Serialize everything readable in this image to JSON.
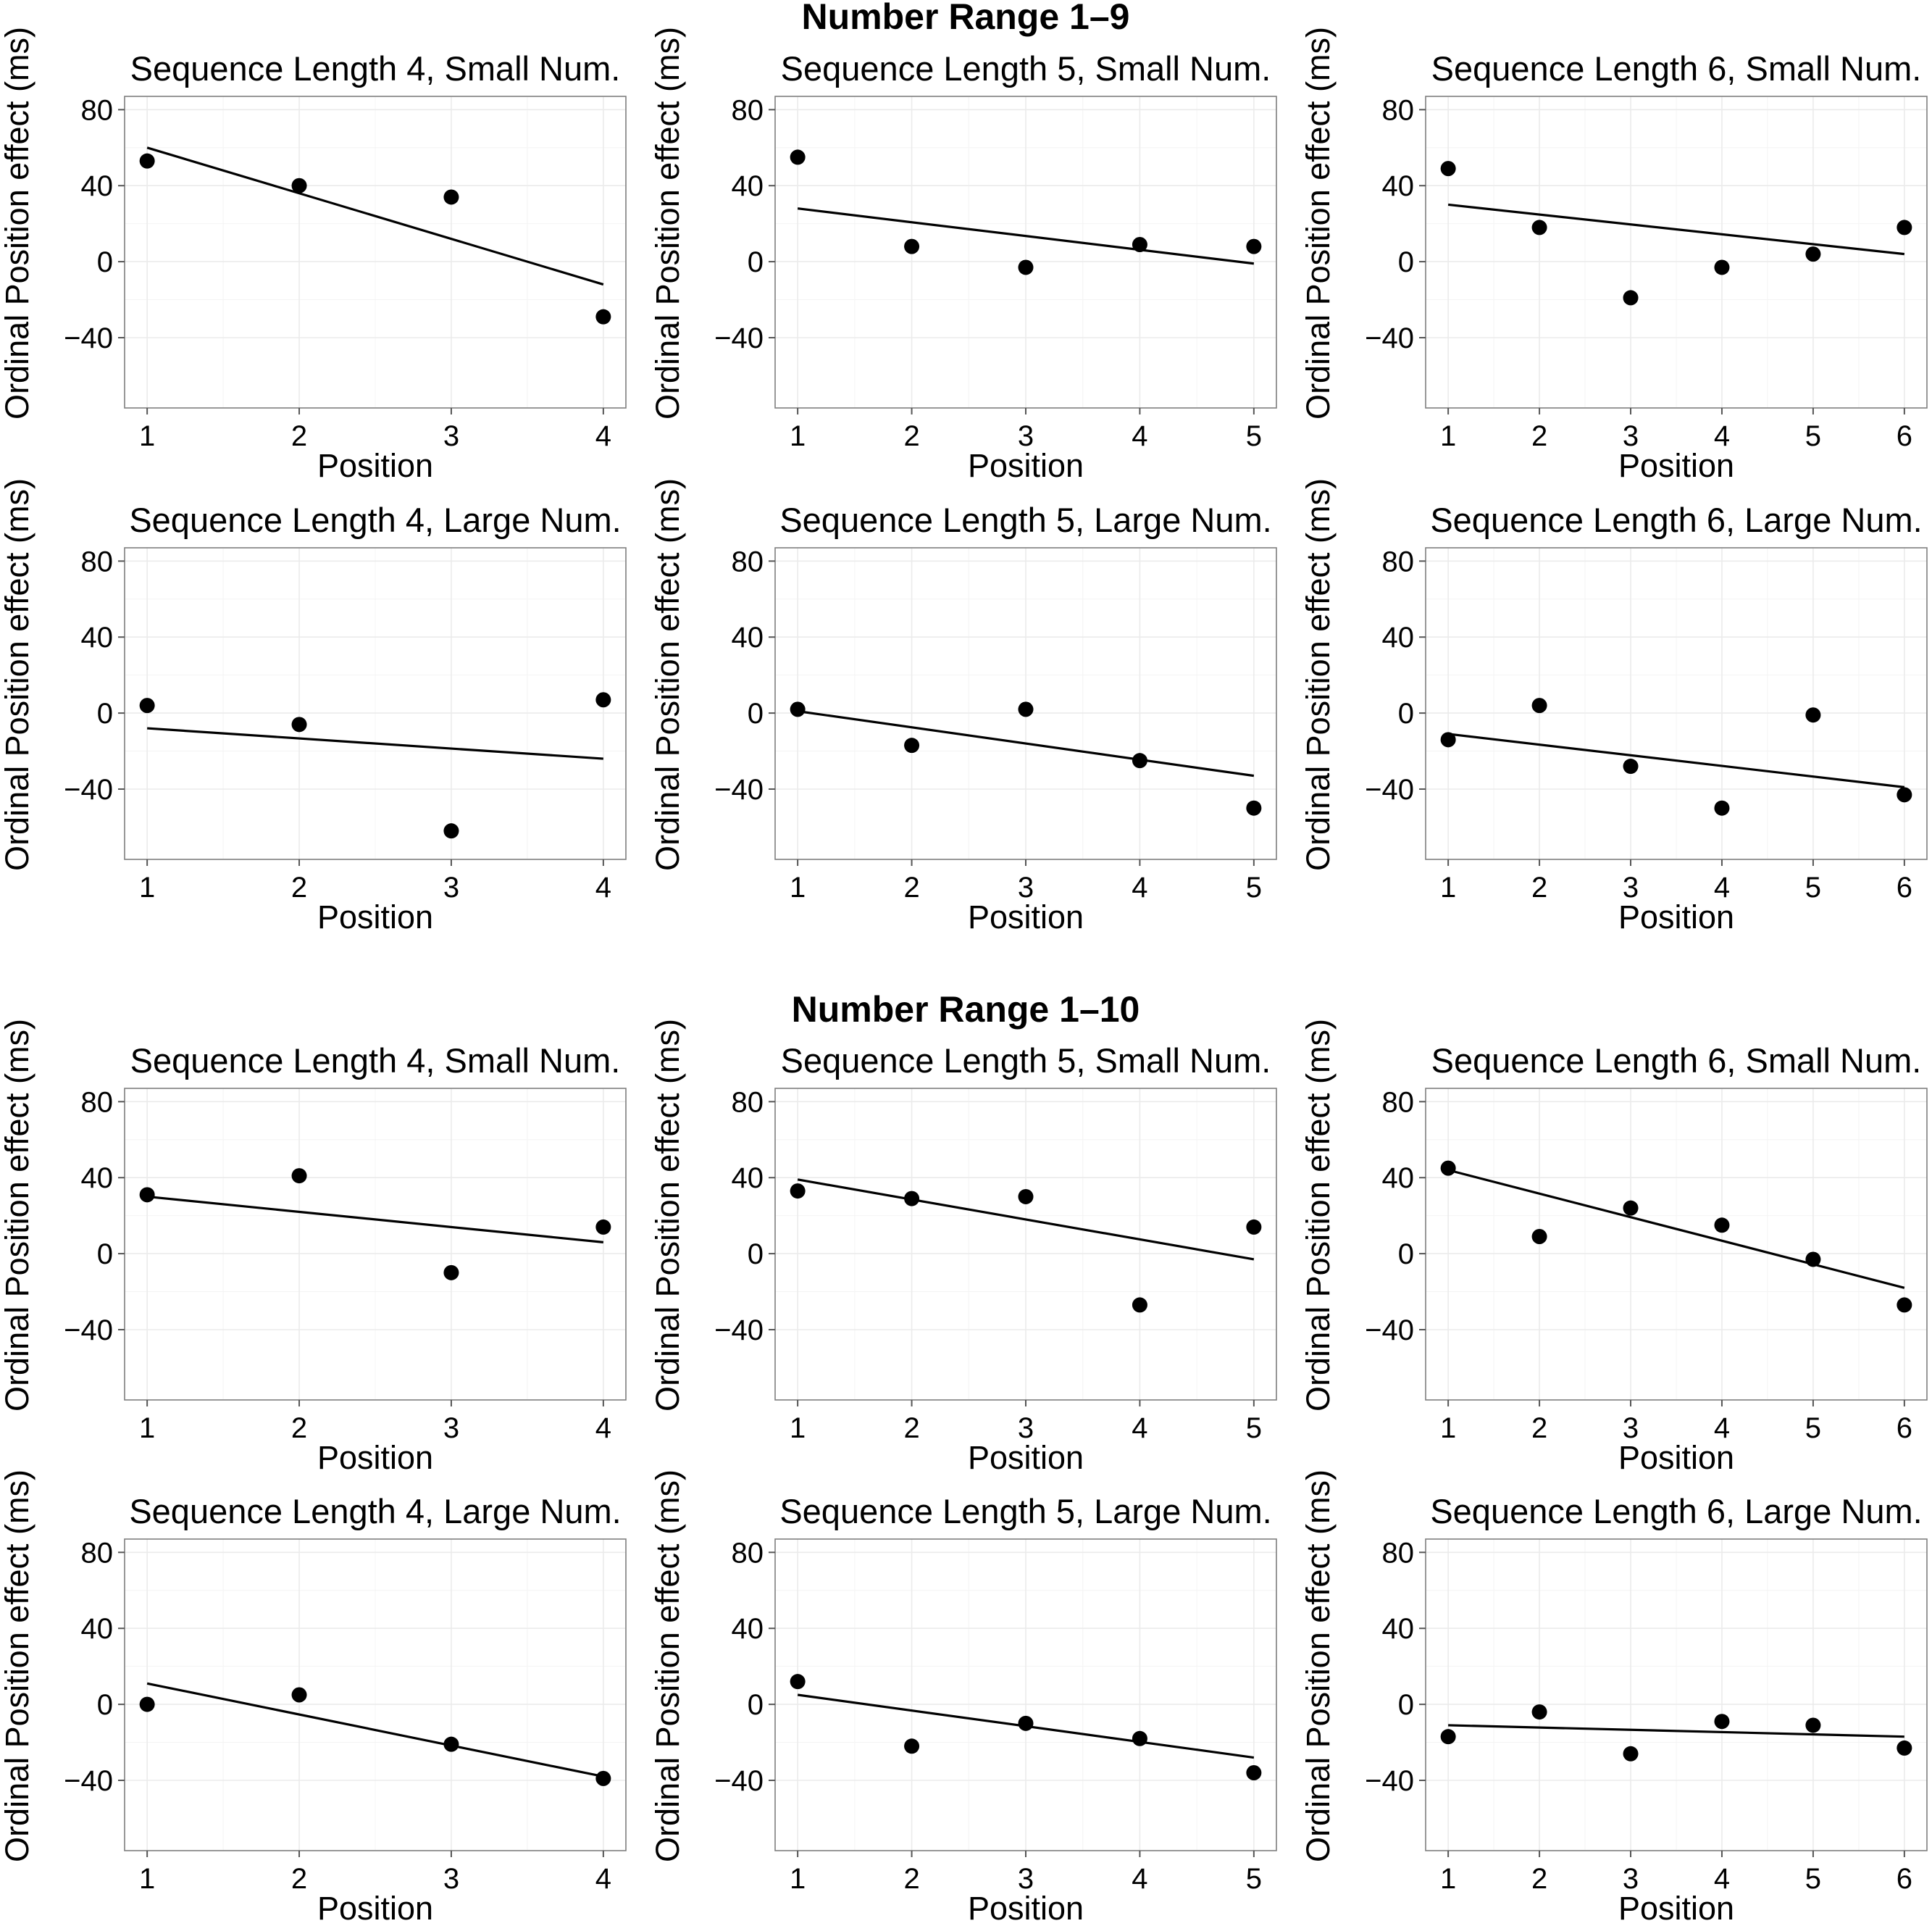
{
  "sections": [
    {
      "title": "Number Range 1–9"
    },
    {
      "title": "Number Range 1–10"
    }
  ],
  "colors": {
    "points": "#000000",
    "line": "#000000",
    "panel_border": "#7f7f7f",
    "grid": "#ebebeb"
  },
  "chart_data": [
    {
      "section": "Number Range 1–9",
      "type": "scatter",
      "title": "Sequence Length 4, Small Num.",
      "xlabel": "Position",
      "ylabel": "Ordinal Position effect (ms)",
      "x": [
        1,
        2,
        3,
        4
      ],
      "y": [
        53,
        40,
        34,
        -29
      ],
      "fit": [
        60,
        -12
      ],
      "ylim": [
        -77,
        87
      ],
      "yticks": [
        -40,
        0,
        40,
        80
      ],
      "grid": true
    },
    {
      "section": "Number Range 1–9",
      "type": "scatter",
      "title": "Sequence Length 5, Small Num.",
      "xlabel": "Position",
      "ylabel": "Ordinal Position effect (ms)",
      "x": [
        1,
        2,
        3,
        4,
        5
      ],
      "y": [
        55,
        8,
        -3,
        9,
        8
      ],
      "fit": [
        28,
        -1
      ],
      "ylim": [
        -77,
        87
      ],
      "yticks": [
        -40,
        0,
        40,
        80
      ],
      "grid": true
    },
    {
      "section": "Number Range 1–9",
      "type": "scatter",
      "title": "Sequence Length 6, Small Num.",
      "xlabel": "Position",
      "ylabel": "Ordinal Position effect (ms)",
      "x": [
        1,
        2,
        3,
        4,
        5,
        6
      ],
      "y": [
        49,
        18,
        -19,
        -3,
        4,
        18
      ],
      "fit": [
        30,
        4
      ],
      "ylim": [
        -77,
        87
      ],
      "yticks": [
        -40,
        0,
        40,
        80
      ],
      "grid": true
    },
    {
      "section": "Number Range 1–9",
      "type": "scatter",
      "title": "Sequence Length 4, Large Num.",
      "xlabel": "Position",
      "ylabel": "Ordinal Position effect (ms)",
      "x": [
        1,
        2,
        3,
        4
      ],
      "y": [
        4,
        -6,
        -62,
        7
      ],
      "fit": [
        -8,
        -24
      ],
      "ylim": [
        -77,
        87
      ],
      "yticks": [
        -40,
        0,
        40,
        80
      ],
      "grid": true
    },
    {
      "section": "Number Range 1–9",
      "type": "scatter",
      "title": "Sequence Length 5, Large Num.",
      "xlabel": "Position",
      "ylabel": "Ordinal Position effect (ms)",
      "x": [
        1,
        2,
        3,
        4,
        5
      ],
      "y": [
        2,
        -17,
        2,
        -25,
        -50
      ],
      "fit": [
        1,
        -33
      ],
      "ylim": [
        -77,
        87
      ],
      "yticks": [
        -40,
        0,
        40,
        80
      ],
      "grid": true
    },
    {
      "section": "Number Range 1–9",
      "type": "scatter",
      "title": "Sequence Length 6, Large Num.",
      "xlabel": "Position",
      "ylabel": "Ordinal Position effect (ms)",
      "x": [
        1,
        2,
        3,
        4,
        5,
        6
      ],
      "y": [
        -14,
        4,
        -28,
        -50,
        -1,
        -43
      ],
      "fit": [
        -11,
        -39
      ],
      "ylim": [
        -77,
        87
      ],
      "yticks": [
        -40,
        0,
        40,
        80
      ],
      "grid": true
    },
    {
      "section": "Number Range 1–10",
      "type": "scatter",
      "title": "Sequence Length 4, Small Num.",
      "xlabel": "Position",
      "ylabel": "Ordinal Position effect (ms)",
      "x": [
        1,
        2,
        3,
        4
      ],
      "y": [
        31,
        41,
        -10,
        14
      ],
      "fit": [
        30,
        6
      ],
      "ylim": [
        -77,
        87
      ],
      "yticks": [
        -40,
        0,
        40,
        80
      ],
      "grid": true
    },
    {
      "section": "Number Range 1–10",
      "type": "scatter",
      "title": "Sequence Length 5, Small Num.",
      "xlabel": "Position",
      "ylabel": "Ordinal Position effect (ms)",
      "x": [
        1,
        2,
        3,
        4,
        5
      ],
      "y": [
        33,
        29,
        30,
        -27,
        14
      ],
      "fit": [
        39,
        -3
      ],
      "ylim": [
        -77,
        87
      ],
      "yticks": [
        -40,
        0,
        40,
        80
      ],
      "grid": true
    },
    {
      "section": "Number Range 1–10",
      "type": "scatter",
      "title": "Sequence Length 6, Small Num.",
      "xlabel": "Position",
      "ylabel": "Ordinal Position effect (ms)",
      "x": [
        1,
        2,
        3,
        4,
        5,
        6
      ],
      "y": [
        45,
        9,
        24,
        15,
        -3,
        -27
      ],
      "fit": [
        44,
        -18
      ],
      "ylim": [
        -77,
        87
      ],
      "yticks": [
        -40,
        0,
        40,
        80
      ],
      "grid": true
    },
    {
      "section": "Number Range 1–10",
      "type": "scatter",
      "title": "Sequence Length 4, Large Num.",
      "xlabel": "Position",
      "ylabel": "Ordinal Position effect (ms)",
      "x": [
        1,
        2,
        3,
        4
      ],
      "y": [
        0,
        5,
        -21,
        -39
      ],
      "fit": [
        11,
        -38
      ],
      "ylim": [
        -77,
        87
      ],
      "yticks": [
        -40,
        0,
        40,
        80
      ],
      "grid": true
    },
    {
      "section": "Number Range 1–10",
      "type": "scatter",
      "title": "Sequence Length 5, Large Num.",
      "xlabel": "Position",
      "ylabel": "Ordinal Position effect (ms)",
      "x": [
        1,
        2,
        3,
        4,
        5
      ],
      "y": [
        12,
        -22,
        -10,
        -18,
        -36
      ],
      "fit": [
        5,
        -28
      ],
      "ylim": [
        -77,
        87
      ],
      "yticks": [
        -40,
        0,
        40,
        80
      ],
      "grid": true
    },
    {
      "section": "Number Range 1–10",
      "type": "scatter",
      "title": "Sequence Length 6, Large Num.",
      "xlabel": "Position",
      "ylabel": "Ordinal Position effect (ms)",
      "x": [
        1,
        2,
        3,
        4,
        5,
        6
      ],
      "y": [
        -17,
        -4,
        -26,
        -9,
        -11,
        -23
      ],
      "fit": [
        -11,
        -17
      ],
      "ylim": [
        -77,
        87
      ],
      "yticks": [
        -40,
        0,
        40,
        80
      ],
      "grid": true
    }
  ]
}
